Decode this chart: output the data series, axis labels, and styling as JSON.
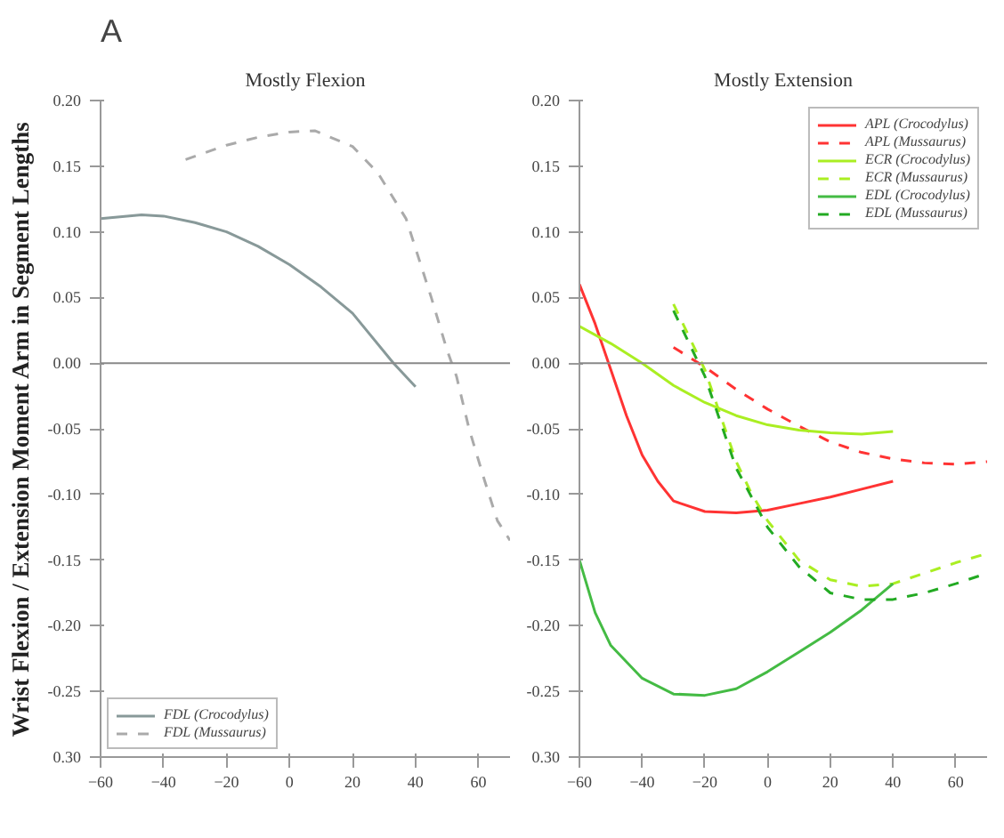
{
  "chart_data": [
    {
      "type": "line",
      "title": "Mostly Flexion",
      "ylabel": "Wrist Flexion / Extension Moment Arm in Segment Lengths",
      "annotations": [
        "A"
      ],
      "xlim": [
        -60,
        70
      ],
      "xticks": [
        -60,
        -40,
        -20,
        0,
        20,
        40,
        60
      ],
      "ylim": [
        -0.3,
        0.2
      ],
      "yticks": [
        {
          "value": 0.2,
          "label": "0.20"
        },
        {
          "value": 0.15,
          "label": "0.15"
        },
        {
          "value": 0.1,
          "label": "0.10"
        },
        {
          "value": 0.05,
          "label": "0.05"
        },
        {
          "value": 0,
          "label": "0.00"
        },
        {
          "value": -0.05,
          "label": "-0.05"
        },
        {
          "value": -0.1,
          "label": "-0.10"
        },
        {
          "value": -0.15,
          "label": "-0.15"
        },
        {
          "value": -0.2,
          "label": "-0.20"
        },
        {
          "value": -0.25,
          "label": "-0.25"
        },
        {
          "value": -0.3,
          "label": "0.30"
        }
      ],
      "grid": false,
      "legend": "bottom left",
      "ref_lines": [
        {
          "axis": "y",
          "value": 0,
          "color": "#888888"
        }
      ],
      "series": [
        {
          "name": "FDL (Crocodylus)",
          "color": "#889999",
          "line_style": "solid",
          "x": [
            -60,
            -47,
            -40,
            -30,
            -20,
            -10,
            0,
            10,
            20,
            33,
            40
          ],
          "values": [
            0.11,
            0.113,
            0.112,
            0.107,
            0.1,
            0.089,
            0.075,
            0.058,
            0.038,
            0,
            -0.018
          ]
        },
        {
          "name": "FDL (Mussaurus)",
          "color": "#aaaaaa",
          "line_style": "dashed",
          "x": [
            -33,
            -20,
            -10,
            0,
            8,
            20,
            28,
            37,
            45,
            50,
            53,
            57,
            62,
            66,
            70
          ],
          "values": [
            0.155,
            0.166,
            0.172,
            0.176,
            0.177,
            0.165,
            0.145,
            0.11,
            0.05,
            0.01,
            -0.01,
            -0.05,
            -0.09,
            -0.12,
            -0.135
          ]
        }
      ]
    },
    {
      "type": "line",
      "title": "Mostly Extension",
      "xlim": [
        -60,
        70
      ],
      "xticks": [
        -60,
        -40,
        -20,
        0,
        20,
        40,
        60
      ],
      "ylim": [
        -0.3,
        0.2
      ],
      "yticks": [
        {
          "value": 0.2,
          "label": "0.20"
        },
        {
          "value": 0.15,
          "label": "0.15"
        },
        {
          "value": 0.1,
          "label": "0.10"
        },
        {
          "value": 0.05,
          "label": "0.05"
        },
        {
          "value": 0,
          "label": "0.00"
        },
        {
          "value": -0.05,
          "label": "-0.05"
        },
        {
          "value": -0.1,
          "label": "-0.10"
        },
        {
          "value": -0.15,
          "label": "-0.15"
        },
        {
          "value": -0.2,
          "label": "-0.20"
        },
        {
          "value": -0.25,
          "label": "-0.25"
        },
        {
          "value": -0.3,
          "label": "0.30"
        }
      ],
      "grid": false,
      "legend": "top right",
      "ref_lines": [
        {
          "axis": "y",
          "value": 0,
          "color": "#888888"
        }
      ],
      "series": [
        {
          "name": "APL (Crocodylus)",
          "color": "#ff3333",
          "line_style": "solid",
          "x": [
            -60,
            -55,
            -50,
            -45,
            -40,
            -35,
            -30,
            -20,
            -10,
            0,
            10,
            20,
            30,
            40
          ],
          "values": [
            0.06,
            0.03,
            -0.005,
            -0.04,
            -0.07,
            -0.09,
            -0.105,
            -0.113,
            -0.114,
            -0.112,
            -0.107,
            -0.102,
            -0.096,
            -0.09
          ]
        },
        {
          "name": "APL (Mussaurus)",
          "color": "#ff3333",
          "line_style": "dashed",
          "x": [
            -30,
            -20,
            -10,
            0,
            10,
            20,
            30,
            40,
            50,
            60,
            70
          ],
          "values": [
            0.012,
            -0.003,
            -0.02,
            -0.035,
            -0.048,
            -0.06,
            -0.068,
            -0.073,
            -0.076,
            -0.077,
            -0.075
          ]
        },
        {
          "name": "ECR (Crocodylus)",
          "color": "#aaee22",
          "line_style": "solid",
          "x": [
            -60,
            -50,
            -40,
            -30,
            -20,
            -10,
            0,
            10,
            20,
            30,
            40
          ],
          "values": [
            0.028,
            0.015,
            0,
            -0.017,
            -0.03,
            -0.04,
            -0.047,
            -0.051,
            -0.053,
            -0.054,
            -0.052
          ]
        },
        {
          "name": "ECR (Mussaurus)",
          "color": "#aaee22",
          "line_style": "dashed",
          "x": [
            -30,
            -25,
            -20,
            -15,
            -10,
            -5,
            0,
            10,
            20,
            30,
            40,
            50,
            60,
            70
          ],
          "values": [
            0.045,
            0.02,
            -0.005,
            -0.04,
            -0.075,
            -0.1,
            -0.12,
            -0.15,
            -0.165,
            -0.17,
            -0.168,
            -0.16,
            -0.152,
            -0.145
          ]
        },
        {
          "name": "EDL (Crocodylus)",
          "color": "#44bb44",
          "line_style": "solid",
          "x": [
            -60,
            -55,
            -50,
            -40,
            -30,
            -20,
            -10,
            0,
            10,
            20,
            30,
            40
          ],
          "values": [
            -0.15,
            -0.19,
            -0.215,
            -0.24,
            -0.252,
            -0.253,
            -0.248,
            -0.235,
            -0.22,
            -0.205,
            -0.188,
            -0.168
          ]
        },
        {
          "name": "EDL (Mussaurus)",
          "color": "#22aa22",
          "line_style": "dashed",
          "x": [
            -30,
            -25,
            -20,
            -15,
            -10,
            0,
            10,
            20,
            30,
            40,
            50,
            60,
            70
          ],
          "values": [
            0.04,
            0.015,
            -0.01,
            -0.045,
            -0.08,
            -0.125,
            -0.155,
            -0.175,
            -0.18,
            -0.18,
            -0.175,
            -0.168,
            -0.16
          ]
        }
      ]
    }
  ]
}
